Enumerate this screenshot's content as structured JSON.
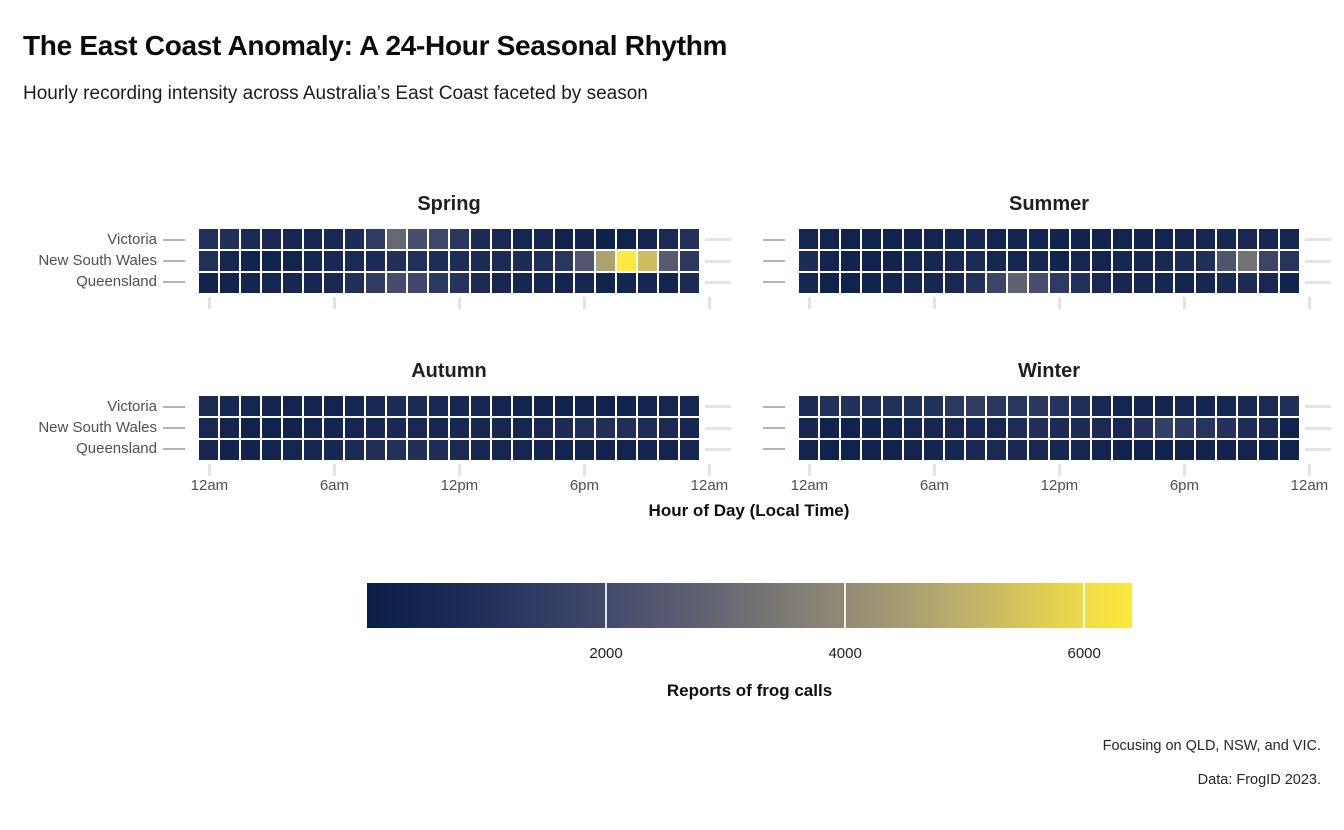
{
  "header": {
    "title": "The East Coast Anomaly: A 24-Hour Seasonal Rhythm",
    "subtitle": "Hourly recording intensity across Australia’s East Coast faceted by season"
  },
  "axis": {
    "x_title": "Hour of Day (Local Time)",
    "x_ticks": [
      {
        "hour": 0,
        "label": "12am"
      },
      {
        "hour": 6,
        "label": "6am"
      },
      {
        "hour": 12,
        "label": "12pm"
      },
      {
        "hour": 18,
        "label": "6pm"
      },
      {
        "hour": 24,
        "label": "12am"
      }
    ]
  },
  "legend": {
    "label": "Reports of frog calls",
    "min": 0,
    "max": 6400,
    "ticks": [
      2000,
      4000,
      6000
    ]
  },
  "captions": {
    "line1": "Focusing on QLD, NSW, and VIC.",
    "line2": "Data: FrogID 2023."
  },
  "colors": {
    "background": "#ffffff",
    "title_text": "#0b0b0b",
    "subtitle_text": "#1c1c1c",
    "facet_title_text": "#1f1f1f",
    "axis_text": "#4f4f4f",
    "axis_title_text": "#0f0f0f",
    "tick_major": "#b3b3b3",
    "tick_minor": "#e4e4e4",
    "cell_gap": "#ffffff",
    "colorbar_tick": "#ffffff"
  },
  "chart_data": {
    "type": "heatmap",
    "title": "The East Coast Anomaly: A 24-Hour Seasonal Rhythm",
    "subtitle": "Hourly recording intensity across Australia’s East Coast faceted by season",
    "facet_by": "season",
    "x_unit": "hour of day (0-23, local time)",
    "x_range": [
      0,
      24
    ],
    "value_label": "Reports of frog calls",
    "value_range": [
      0,
      6400
    ],
    "rows": [
      "Victoria",
      "New South Wales",
      "Queensland"
    ],
    "colormap": {
      "name": "cividis",
      "stops": [
        [
          0.0,
          "#0a1f48"
        ],
        [
          0.1,
          "#182852"
        ],
        [
          0.2,
          "#2a3860"
        ],
        [
          0.3,
          "#40486a"
        ],
        [
          0.4,
          "#575a71"
        ],
        [
          0.5,
          "#707074"
        ],
        [
          0.6,
          "#8a8576"
        ],
        [
          0.7,
          "#a69c72"
        ],
        [
          0.8,
          "#c4b568"
        ],
        [
          0.9,
          "#e4d150"
        ],
        [
          1.0,
          "#ffe93e"
        ]
      ]
    },
    "facets": [
      {
        "name": "Spring",
        "series": [
          {
            "name": "Victoria",
            "values": [
              1000,
              950,
              700,
              620,
              580,
              580,
              650,
              800,
              1400,
              2950,
              2150,
              1850,
              1280,
              800,
              620,
              520,
              520,
              300,
              350,
              200,
              250,
              400,
              700,
              1000
            ]
          },
          {
            "name": "New South Wales",
            "values": [
              1000,
              500,
              320,
              350,
              430,
              560,
              620,
              700,
              760,
              950,
              1000,
              820,
              820,
              750,
              750,
              790,
              900,
              1250,
              2380,
              4600,
              6400,
              5300,
              2550,
              1350
            ]
          },
          {
            "name": "Queensland",
            "values": [
              350,
              380,
              450,
              520,
              570,
              590,
              640,
              900,
              1450,
              2100,
              1900,
              1350,
              1100,
              700,
              590,
              540,
              580,
              430,
              560,
              340,
              440,
              520,
              420,
              750
            ]
          }
        ]
      },
      {
        "name": "Summer",
        "series": [
          {
            "name": "Victoria",
            "values": [
              600,
              400,
              300,
              250,
              300,
              350,
              400,
              450,
              500,
              450,
              420,
              400,
              350,
              380,
              350,
              400,
              380,
              420,
              450,
              500,
              550,
              650,
              600,
              520
            ]
          },
          {
            "name": "New South Wales",
            "values": [
              800,
              420,
              350,
              250,
              330,
              520,
              560,
              650,
              700,
              560,
              480,
              570,
              380,
              500,
              420,
              560,
              540,
              620,
              800,
              900,
              2350,
              3300,
              1800,
              1150
            ]
          },
          {
            "name": "Queensland",
            "values": [
              560,
              250,
              300,
              330,
              420,
              520,
              550,
              650,
              1000,
              1800,
              2800,
              2150,
              1400,
              1000,
              650,
              600,
              580,
              560,
              450,
              560,
              680,
              780,
              640,
              350
            ]
          }
        ]
      },
      {
        "name": "Autumn",
        "series": [
          {
            "name": "Victoria",
            "values": [
              700,
              600,
              500,
              450,
              420,
              400,
              420,
              500,
              650,
              800,
              750,
              650,
              550,
              480,
              430,
              400,
              380,
              350,
              320,
              300,
              330,
              400,
              500,
              600
            ]
          },
          {
            "name": "New South Wales",
            "values": [
              650,
              400,
              300,
              280,
              320,
              400,
              450,
              520,
              600,
              680,
              650,
              600,
              560,
              540,
              540,
              560,
              620,
              780,
              900,
              950,
              900,
              850,
              750,
              550
            ]
          },
          {
            "name": "Queensland",
            "values": [
              500,
              380,
              380,
              420,
              480,
              520,
              560,
              700,
              900,
              1000,
              950,
              850,
              750,
              600,
              520,
              480,
              460,
              420,
              400,
              380,
              420,
              460,
              420,
              480
            ]
          }
        ]
      },
      {
        "name": "Winter",
        "series": [
          {
            "name": "Victoria",
            "values": [
              800,
              1000,
              1000,
              900,
              1000,
              1020,
              980,
              1300,
              1430,
              1250,
              1230,
              1280,
              1100,
              900,
              620,
              480,
              450,
              400,
              500,
              470,
              520,
              620,
              700,
              950
            ]
          },
          {
            "name": "New South Wales",
            "values": [
              580,
              330,
              300,
              330,
              420,
              520,
              580,
              640,
              680,
              650,
              850,
              950,
              800,
              800,
              750,
              640,
              1050,
              1600,
              1350,
              1150,
              1050,
              880,
              750,
              350
            ]
          },
          {
            "name": "Queensland",
            "values": [
              400,
              280,
              280,
              300,
              350,
              400,
              450,
              550,
              650,
              700,
              680,
              620,
              560,
              480,
              420,
              380,
              360,
              340,
              380,
              350,
              380,
              400,
              360,
              320
            ]
          }
        ]
      }
    ]
  }
}
